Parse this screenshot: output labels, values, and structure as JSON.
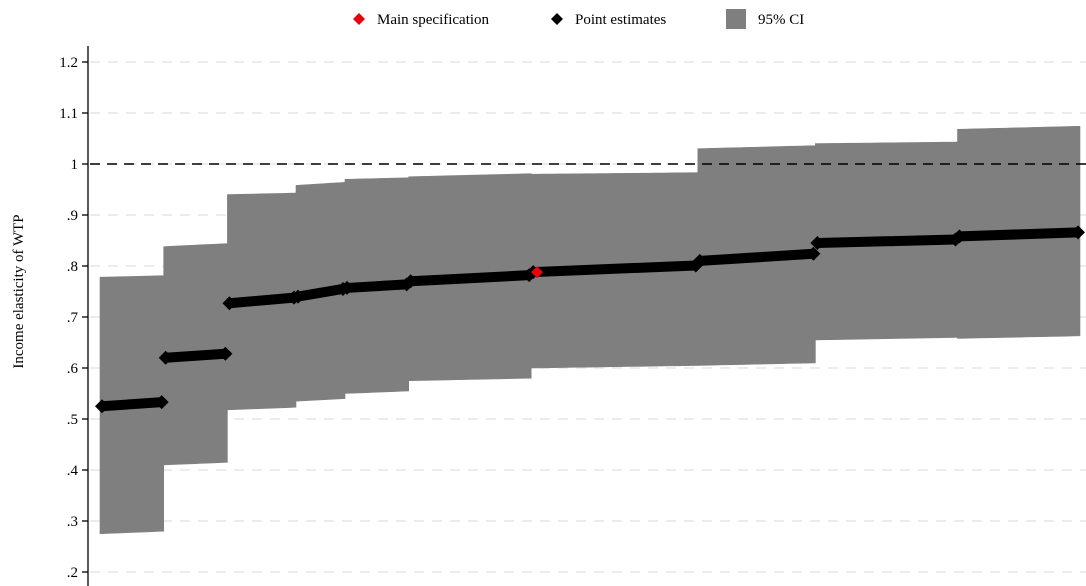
{
  "chart_data": {
    "type": "scatter",
    "title": "",
    "xlabel": "",
    "ylabel": "Income elasticity of WTP",
    "ylim": [
      0.2,
      1.2
    ],
    "xlim": [
      0,
      1
    ],
    "yticks": [
      0.2,
      0.3,
      0.4,
      0.5,
      0.6,
      0.7,
      0.8,
      0.9,
      1.0,
      1.1,
      1.2
    ],
    "ytick_labels": [
      ".2",
      ".3",
      ".4",
      ".5",
      ".6",
      ".7",
      ".8",
      ".9",
      "1",
      "1.1",
      "1.2"
    ],
    "grid": true,
    "reference_line": {
      "y": 1.0,
      "style": "dashed"
    },
    "legend_position": "top",
    "legend": [
      {
        "label": "Main specification",
        "marker": "diamond",
        "color": "#e8000b"
      },
      {
        "label": "Point estimates",
        "marker": "diamond",
        "color": "#000000"
      },
      {
        "label": "95% CI",
        "marker": "square",
        "color": "#7f7f7f"
      }
    ],
    "colors": {
      "ci": "#7f7f7f",
      "point": "#000000",
      "main": "#e8000b",
      "grid": "#e6e6e6",
      "refline": "#000000"
    },
    "segments": [
      {
        "x0": 0.0,
        "x1": 0.065,
        "lo": 0.275,
        "hi": 0.778,
        "est0": 0.525,
        "est1": 0.533
      },
      {
        "x0": 0.065,
        "x1": 0.13,
        "lo": 0.41,
        "hi": 0.838,
        "est0": 0.62,
        "est1": 0.628
      },
      {
        "x0": 0.13,
        "x1": 0.2,
        "lo": 0.518,
        "hi": 0.94,
        "est0": 0.727,
        "est1": 0.738
      },
      {
        "x0": 0.2,
        "x1": 0.25,
        "lo": 0.535,
        "hi": 0.958,
        "est0": 0.74,
        "est1": 0.755
      },
      {
        "x0": 0.25,
        "x1": 0.315,
        "lo": 0.55,
        "hi": 0.97,
        "est0": 0.757,
        "est1": 0.764
      },
      {
        "x0": 0.315,
        "x1": 0.44,
        "lo": 0.575,
        "hi": 0.975,
        "est0": 0.77,
        "est1": 0.782
      },
      {
        "x0": 0.44,
        "x1": 0.61,
        "lo": 0.6,
        "hi": 0.98,
        "est0": 0.788,
        "est1": 0.801
      },
      {
        "x0": 0.61,
        "x1": 0.73,
        "lo": 0.605,
        "hi": 1.03,
        "est0": 0.81,
        "est1": 0.824
      },
      {
        "x0": 0.73,
        "x1": 0.875,
        "lo": 0.655,
        "hi": 1.04,
        "est0": 0.845,
        "est1": 0.852
      },
      {
        "x0": 0.875,
        "x1": 1.0,
        "lo": 0.658,
        "hi": 1.068,
        "est0": 0.858,
        "est1": 0.866
      }
    ],
    "main_specification": {
      "x": 0.446,
      "y": 0.788
    }
  }
}
